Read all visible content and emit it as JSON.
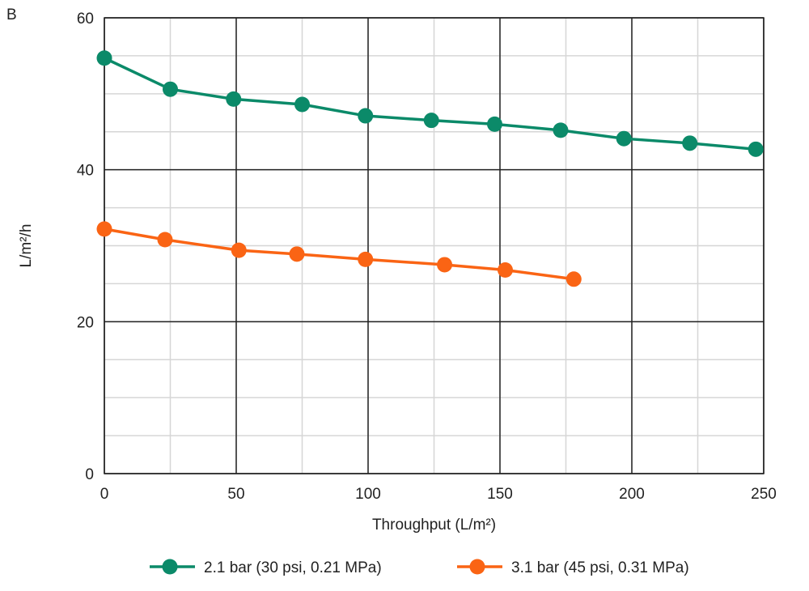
{
  "panel_label": "B",
  "chart_data": {
    "type": "line",
    "title": "",
    "xlabel": "Throughput (L/m²)",
    "ylabel": "L/m²/h",
    "xlim": [
      0,
      250
    ],
    "ylim": [
      0,
      60
    ],
    "xticks": [
      0,
      50,
      100,
      150,
      200,
      250
    ],
    "yticks": [
      0,
      20,
      40,
      60
    ],
    "grid": {
      "major": true,
      "minor_x_step": 25,
      "minor_y_step": 5
    },
    "legend_position": "bottom",
    "series": [
      {
        "name": "2.1 bar (30 psi, 0.21 MPa)",
        "color": "#0b8a69",
        "x": [
          0,
          25,
          49,
          75,
          99,
          124,
          148,
          173,
          197,
          222,
          247
        ],
        "y": [
          54.7,
          50.6,
          49.3,
          48.6,
          47.1,
          46.5,
          46.0,
          45.2,
          44.1,
          43.5,
          42.7
        ]
      },
      {
        "name": "3.1 bar (45 psi, 0.31 MPa)",
        "color": "#fa6414",
        "x": [
          0,
          23,
          51,
          73,
          99,
          129,
          152,
          178
        ],
        "y": [
          32.2,
          30.8,
          29.4,
          28.9,
          28.2,
          27.5,
          26.8,
          25.6
        ]
      }
    ]
  }
}
